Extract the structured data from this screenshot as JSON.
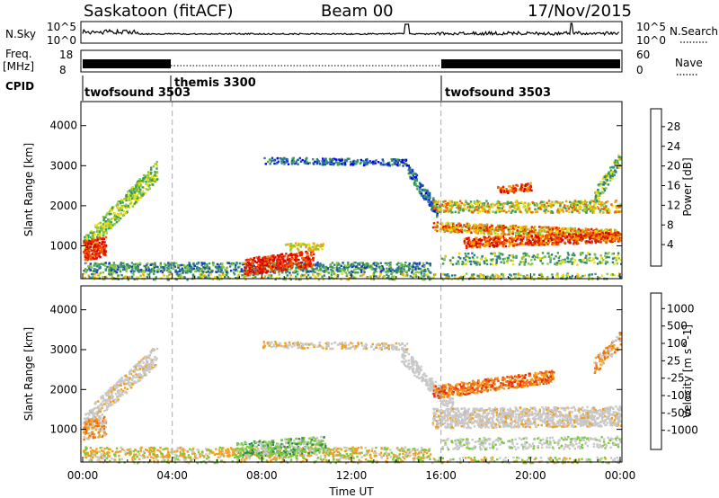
{
  "header": {
    "station": "Saskatoon (fitACF)",
    "beam": "Beam 00",
    "date": "17/Nov/2015"
  },
  "top_panels": {
    "nsky_label": "N.Sky",
    "nsky_ticks": [
      "10^5",
      "10^0"
    ],
    "nsearch_label": "N.Search",
    "nsearch_ticks": [
      "10^5",
      "10^0"
    ],
    "freq_label": "Freq.",
    "freq_unit": "[MHz]",
    "freq_ticks": [
      18,
      8
    ],
    "nave_label": "Nave",
    "nave_ticks": [
      60,
      0
    ],
    "cpid_label": "CPID",
    "cpid_segments": [
      {
        "name": "twofsound 3503",
        "start_hr": 0,
        "end_hr": 4
      },
      {
        "name": "themis 3300",
        "start_hr": 4,
        "end_hr": 16
      },
      {
        "name": "twofsound 3503",
        "start_hr": 16,
        "end_hr": 24
      }
    ]
  },
  "time_axis": {
    "label": "Time UT",
    "ticks": [
      "00:00",
      "04:00",
      "08:00",
      "12:00",
      "16:00",
      "20:00",
      "00:00"
    ],
    "tick_hours": [
      0,
      4,
      8,
      12,
      16,
      20,
      24
    ]
  },
  "chart_data": [
    {
      "type": "heatmap",
      "ylabel": "Slant Range [km]",
      "yticks": [
        1000,
        2000,
        3000,
        4000
      ],
      "ylim": [
        180,
        4600
      ],
      "xlim": [
        0,
        24
      ],
      "colorbar_label": "Power [dB]",
      "colorbar_ticks": [
        "28",
        "24",
        "20",
        "16",
        "12",
        "8",
        "4"
      ],
      "colorbar_colors": [
        "#0000ff",
        "#1a3fb4",
        "#2e7d8a",
        "#3a9e5a",
        "#8cc63f",
        "#f2dd00",
        "#f4a300",
        "#f06000",
        "#e81b00",
        "#d40000"
      ]
    },
    {
      "type": "heatmap",
      "ylabel": "Slant Range [km]",
      "yticks": [
        1000,
        2000,
        3000,
        4000
      ],
      "ylim": [
        180,
        4600
      ],
      "xlim": [
        0,
        24
      ],
      "colorbar_label": "Velocity [m s^-1]",
      "colorbar_ticks": [
        "1000",
        "500",
        "100",
        "25",
        "-25",
        "-100",
        "-500",
        "-1000"
      ],
      "colorbar_colors": [
        "#2a3fbf",
        "#3b72b8",
        "#2e8b57",
        "#7acb3a",
        "#c8c8c8",
        "#c8c8c8",
        "#f0a020",
        "#f07010",
        "#e83010",
        "#e00000"
      ]
    }
  ]
}
